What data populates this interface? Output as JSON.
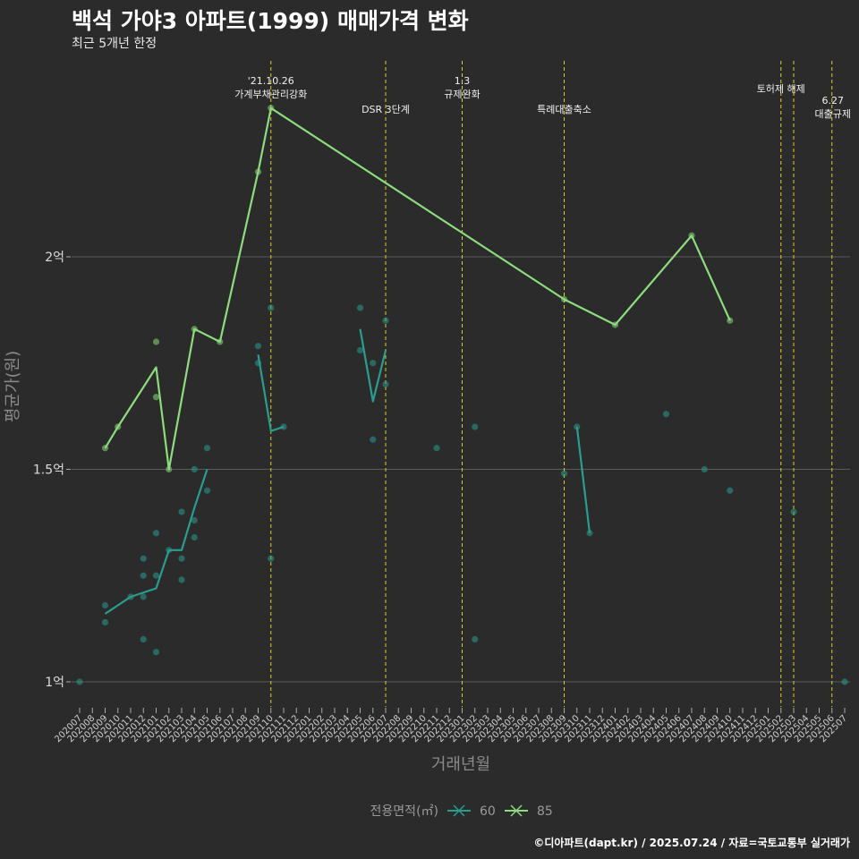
{
  "title": "백석 가야3 아파트(1999) 매매가격 변화",
  "subtitle": "최근 5개년 한정",
  "caption": "©디아파트(dapt.kr) / 2025.07.24 / 자료=국토교통부 실거래가",
  "chart_data": {
    "type": "line",
    "xlabel": "거래년월",
    "ylabel": "평균가(원)",
    "ylim": [
      0.94,
      2.36
    ],
    "yticks": [
      {
        "value": 1.0,
        "label": "1억"
      },
      {
        "value": 1.5,
        "label": "1.5억"
      },
      {
        "value": 2.0,
        "label": "2억"
      }
    ],
    "grid": true,
    "categories": [
      "202007",
      "202008",
      "202009",
      "202010",
      "202011",
      "202012",
      "202101",
      "202102",
      "202103",
      "202104",
      "202105",
      "202106",
      "202107",
      "202108",
      "202109",
      "202110",
      "202111",
      "202112",
      "202201",
      "202202",
      "202203",
      "202204",
      "202205",
      "202206",
      "202207",
      "202208",
      "202209",
      "202210",
      "202211",
      "202212",
      "202301",
      "202302",
      "202303",
      "202304",
      "202305",
      "202306",
      "202307",
      "202308",
      "202309",
      "202310",
      "202311",
      "202312",
      "202401",
      "202402",
      "202403",
      "202404",
      "202405",
      "202406",
      "202407",
      "202408",
      "202409",
      "202410",
      "202411",
      "202412",
      "202501",
      "202502",
      "202503",
      "202504",
      "202505",
      "202506",
      "202507"
    ],
    "legend": {
      "title": "전용면적(㎡)",
      "position": "bottom"
    },
    "series": [
      {
        "name": "60",
        "color": "#2a9d8f",
        "line": [
          [
            "202009",
            1.16
          ],
          [
            "202011",
            1.2
          ],
          [
            "202101",
            1.22
          ],
          [
            "202102",
            1.31
          ],
          [
            "202103",
            1.31
          ],
          [
            "202104",
            1.41
          ],
          [
            "202105",
            1.5
          ],
          [
            "202109",
            1.77
          ],
          [
            "202110",
            1.59
          ],
          [
            "202111",
            1.6
          ],
          [
            "202205",
            1.83
          ],
          [
            "202206",
            1.66
          ],
          [
            "202207",
            1.78
          ],
          [
            "202310",
            1.6
          ],
          [
            "202311",
            1.35
          ]
        ],
        "segments": [
          [
            0,
            6
          ],
          [
            7,
            9
          ],
          [
            10,
            12
          ],
          [
            13,
            14
          ]
        ],
        "points": [
          [
            "202007",
            1.0
          ],
          [
            "202009",
            1.18
          ],
          [
            "202009",
            1.14
          ],
          [
            "202011",
            1.2
          ],
          [
            "202012",
            1.29
          ],
          [
            "202012",
            1.25
          ],
          [
            "202012",
            1.2
          ],
          [
            "202012",
            1.1
          ],
          [
            "202101",
            1.35
          ],
          [
            "202101",
            1.25
          ],
          [
            "202101",
            1.07
          ],
          [
            "202102",
            1.31
          ],
          [
            "202103",
            1.4
          ],
          [
            "202103",
            1.29
          ],
          [
            "202103",
            1.24
          ],
          [
            "202104",
            1.5
          ],
          [
            "202104",
            1.38
          ],
          [
            "202104",
            1.34
          ],
          [
            "202105",
            1.55
          ],
          [
            "202105",
            1.45
          ],
          [
            "202109",
            1.79
          ],
          [
            "202109",
            1.75
          ],
          [
            "202110",
            1.88
          ],
          [
            "202110",
            1.29
          ],
          [
            "202111",
            1.6
          ],
          [
            "202205",
            1.88
          ],
          [
            "202205",
            1.78
          ],
          [
            "202206",
            1.75
          ],
          [
            "202206",
            1.57
          ],
          [
            "202207",
            1.85
          ],
          [
            "202207",
            1.7
          ],
          [
            "202211",
            1.55
          ],
          [
            "202302",
            1.6
          ],
          [
            "202302",
            1.1
          ],
          [
            "202309",
            1.49
          ],
          [
            "202310",
            1.6
          ],
          [
            "202311",
            1.35
          ],
          [
            "202405",
            1.63
          ],
          [
            "202408",
            1.5
          ],
          [
            "202410",
            1.45
          ],
          [
            "202503",
            1.4
          ],
          [
            "202507",
            1.0
          ]
        ]
      },
      {
        "name": "85",
        "color": "#8ddc7e",
        "line": [
          [
            "202009",
            1.55
          ],
          [
            "202010",
            1.6
          ],
          [
            "202101",
            1.74
          ],
          [
            "202102",
            1.5
          ],
          [
            "202104",
            1.83
          ],
          [
            "202106",
            1.8
          ],
          [
            "202109",
            2.2
          ],
          [
            "202110",
            2.35
          ],
          [
            "202309",
            1.9
          ],
          [
            "202401",
            1.84
          ],
          [
            "202407",
            2.05
          ],
          [
            "202410",
            1.85
          ]
        ],
        "segments": [
          [
            0,
            11
          ]
        ],
        "points": [
          [
            "202009",
            1.55
          ],
          [
            "202010",
            1.6
          ],
          [
            "202101",
            1.8
          ],
          [
            "202101",
            1.67
          ],
          [
            "202102",
            1.5
          ],
          [
            "202104",
            1.83
          ],
          [
            "202106",
            1.8
          ],
          [
            "202109",
            2.2
          ],
          [
            "202110",
            2.35
          ],
          [
            "202309",
            1.9
          ],
          [
            "202401",
            1.84
          ],
          [
            "202407",
            2.05
          ],
          [
            "202410",
            1.85
          ]
        ]
      }
    ],
    "events": [
      {
        "at": "202110",
        "label": [
          "'21.10.26",
          "가계부채관리강화"
        ],
        "row": "high"
      },
      {
        "at": "202207",
        "label": [
          "DSR 3단계"
        ],
        "row": "low"
      },
      {
        "at": "202301",
        "label": [
          "1.3",
          "규제완화"
        ],
        "row": "high"
      },
      {
        "at": "202309",
        "label": [
          "특례대출축소"
        ],
        "row": "low"
      },
      {
        "at": "202502",
        "label": [
          "토허제 해제"
        ],
        "row": "mid"
      },
      {
        "at": "202503",
        "label": [],
        "row": "mid"
      },
      {
        "at": "202506",
        "label": [
          "6.27",
          "대출규제"
        ],
        "row": "mid2"
      }
    ]
  }
}
